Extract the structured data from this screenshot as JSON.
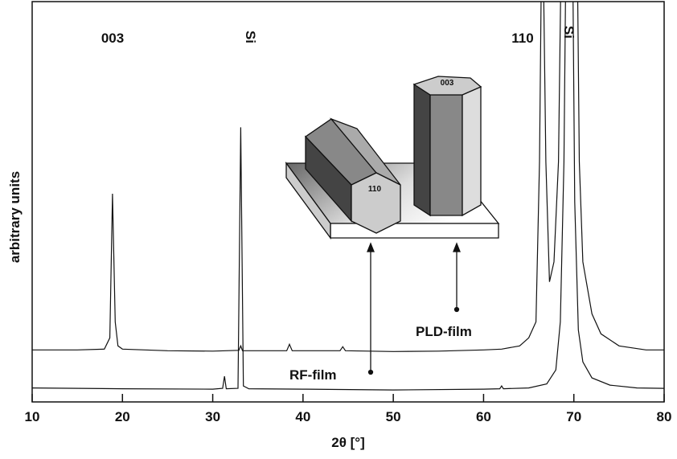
{
  "chart_data": {
    "type": "line",
    "x_label": "2θ [°]",
    "y_label": "arbitrary units",
    "xlim": [
      10,
      80
    ],
    "ylim": [
      0,
      100
    ],
    "xticks": [
      10,
      20,
      30,
      40,
      50,
      60,
      70,
      80
    ],
    "series": [
      {
        "name": "PLD-film",
        "color": "#111111",
        "x": [
          10,
          15,
          18,
          18.6,
          18.9,
          19.2,
          19.5,
          20,
          25,
          30,
          32.9,
          33.1,
          33.3,
          38.2,
          38.5,
          38.8,
          44.1,
          44.4,
          44.7,
          50,
          55,
          60,
          62,
          64,
          65,
          65.8,
          66.2,
          66.5,
          66.9,
          67.3,
          67.8,
          68.3,
          68.7,
          70.3,
          70.6,
          71,
          72,
          73,
          75,
          78,
          80
        ],
        "values": [
          13,
          13,
          13.2,
          16,
          52,
          20,
          14,
          13.2,
          12.8,
          12.7,
          12.9,
          14,
          12.8,
          12.8,
          14.4,
          12.8,
          12.8,
          13.8,
          12.8,
          12.6,
          12.7,
          13,
          13.2,
          14,
          16,
          20,
          60,
          130,
          60,
          30,
          35,
          60,
          130,
          130,
          60,
          35,
          22,
          17,
          14,
          13,
          13
        ]
      },
      {
        "name": "RF-film",
        "color": "#111111",
        "x": [
          10,
          20,
          30,
          31.1,
          31.3,
          31.5,
          32.8,
          33.1,
          33.4,
          34,
          40,
          50,
          60,
          61.8,
          62,
          62.2,
          65,
          67,
          68,
          68.5,
          68.9,
          69.2,
          69.8,
          70.1,
          70.5,
          71,
          72,
          74,
          77,
          80
        ],
        "values": [
          3.5,
          3.3,
          3.2,
          3.4,
          6.4,
          3.3,
          3.4,
          68.6,
          4,
          3.3,
          3.2,
          3,
          3.2,
          3.3,
          4,
          3.3,
          3.5,
          4.5,
          8,
          20,
          60,
          130,
          130,
          50,
          18,
          10,
          6,
          4.2,
          3.5,
          3.4
        ]
      }
    ],
    "annotations": [
      "003",
      "Si",
      "110",
      "Si",
      "PLD-film",
      "RF-film"
    ],
    "inset_labels": [
      "110",
      "003"
    ]
  }
}
